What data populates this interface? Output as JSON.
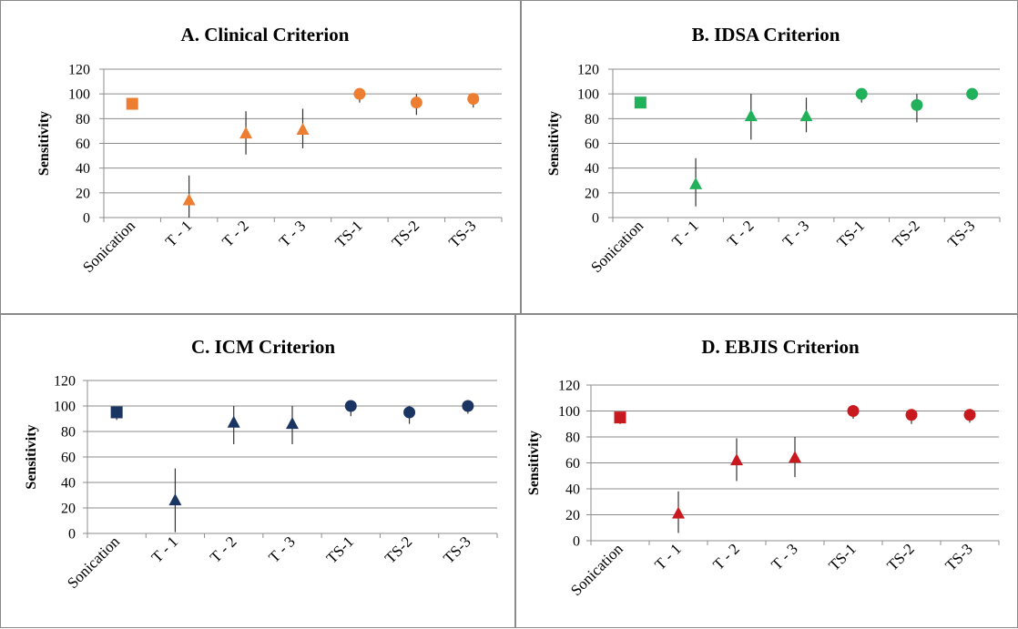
{
  "chart_data": [
    {
      "type": "scatter",
      "title": "A. Clinical Criterion",
      "ylabel": "Sensitivity",
      "ylim": [
        0,
        120
      ],
      "yticks": [
        0,
        20,
        40,
        60,
        80,
        100,
        120
      ],
      "grid": true,
      "color": "#ED7D31",
      "categories": [
        "Sonication",
        "T - 1",
        "T - 2",
        "T - 3",
        "TS-1",
        "TS-2",
        "TS-3"
      ],
      "markers": [
        "square",
        "triangle",
        "triangle",
        "triangle",
        "circle",
        "circle",
        "circle"
      ],
      "values": [
        92,
        14,
        68,
        71,
        100,
        93,
        96
      ],
      "error_low": [
        88,
        0,
        51,
        56,
        93,
        83,
        89
      ],
      "error_high": [
        96,
        34,
        86,
        88,
        100,
        100,
        100
      ]
    },
    {
      "type": "scatter",
      "title": "B. IDSA Criterion",
      "ylabel": "Sensitivity",
      "ylim": [
        0,
        120
      ],
      "yticks": [
        0,
        20,
        40,
        60,
        80,
        100,
        120
      ],
      "grid": true,
      "color": "#21B15A",
      "categories": [
        "Sonication",
        "T - 1",
        "T - 2",
        "T - 3",
        "TS-1",
        "TS-2",
        "TS-3"
      ],
      "markers": [
        "square",
        "triangle",
        "triangle",
        "triangle",
        "circle",
        "circle",
        "circle"
      ],
      "values": [
        93,
        27,
        82,
        82,
        100,
        91,
        100
      ],
      "error_low": [
        89,
        9,
        63,
        69,
        93,
        77,
        95
      ],
      "error_high": [
        97,
        48,
        100,
        97,
        100,
        100,
        100
      ]
    },
    {
      "type": "scatter",
      "title": "C. ICM Criterion",
      "ylabel": "Sensitivity",
      "ylim": [
        0,
        120
      ],
      "yticks": [
        0,
        20,
        40,
        60,
        80,
        100,
        120
      ],
      "grid": true,
      "color": "#1B3563",
      "categories": [
        "Sonication",
        "T - 1",
        "T - 2",
        "T - 3",
        "TS-1",
        "TS-2",
        "TS-3"
      ],
      "markers": [
        "square",
        "triangle",
        "triangle",
        "triangle",
        "circle",
        "circle",
        "circle"
      ],
      "values": [
        95,
        26,
        87,
        86,
        100,
        95,
        100
      ],
      "error_low": [
        89,
        1,
        70,
        70,
        92,
        86,
        94
      ],
      "error_high": [
        99,
        51,
        100,
        100,
        100,
        100,
        100
      ]
    },
    {
      "type": "scatter",
      "title": "D. EBJIS Criterion",
      "ylabel": "Sensitivity",
      "ylim": [
        0,
        120
      ],
      "yticks": [
        0,
        20,
        40,
        60,
        80,
        100,
        120
      ],
      "grid": true,
      "color": "#C81A1E",
      "categories": [
        "Sonication",
        "T - 1",
        "T - 2",
        "T - 3",
        "TS-1",
        "TS-2",
        "TS-3"
      ],
      "markers": [
        "square",
        "triangle",
        "triangle",
        "triangle",
        "circle",
        "circle",
        "circle"
      ],
      "values": [
        95,
        21,
        62,
        64,
        100,
        97,
        97
      ],
      "error_low": [
        90,
        6,
        46,
        49,
        94,
        90,
        91
      ],
      "error_high": [
        99,
        38,
        79,
        80,
        100,
        100,
        100
      ]
    }
  ]
}
